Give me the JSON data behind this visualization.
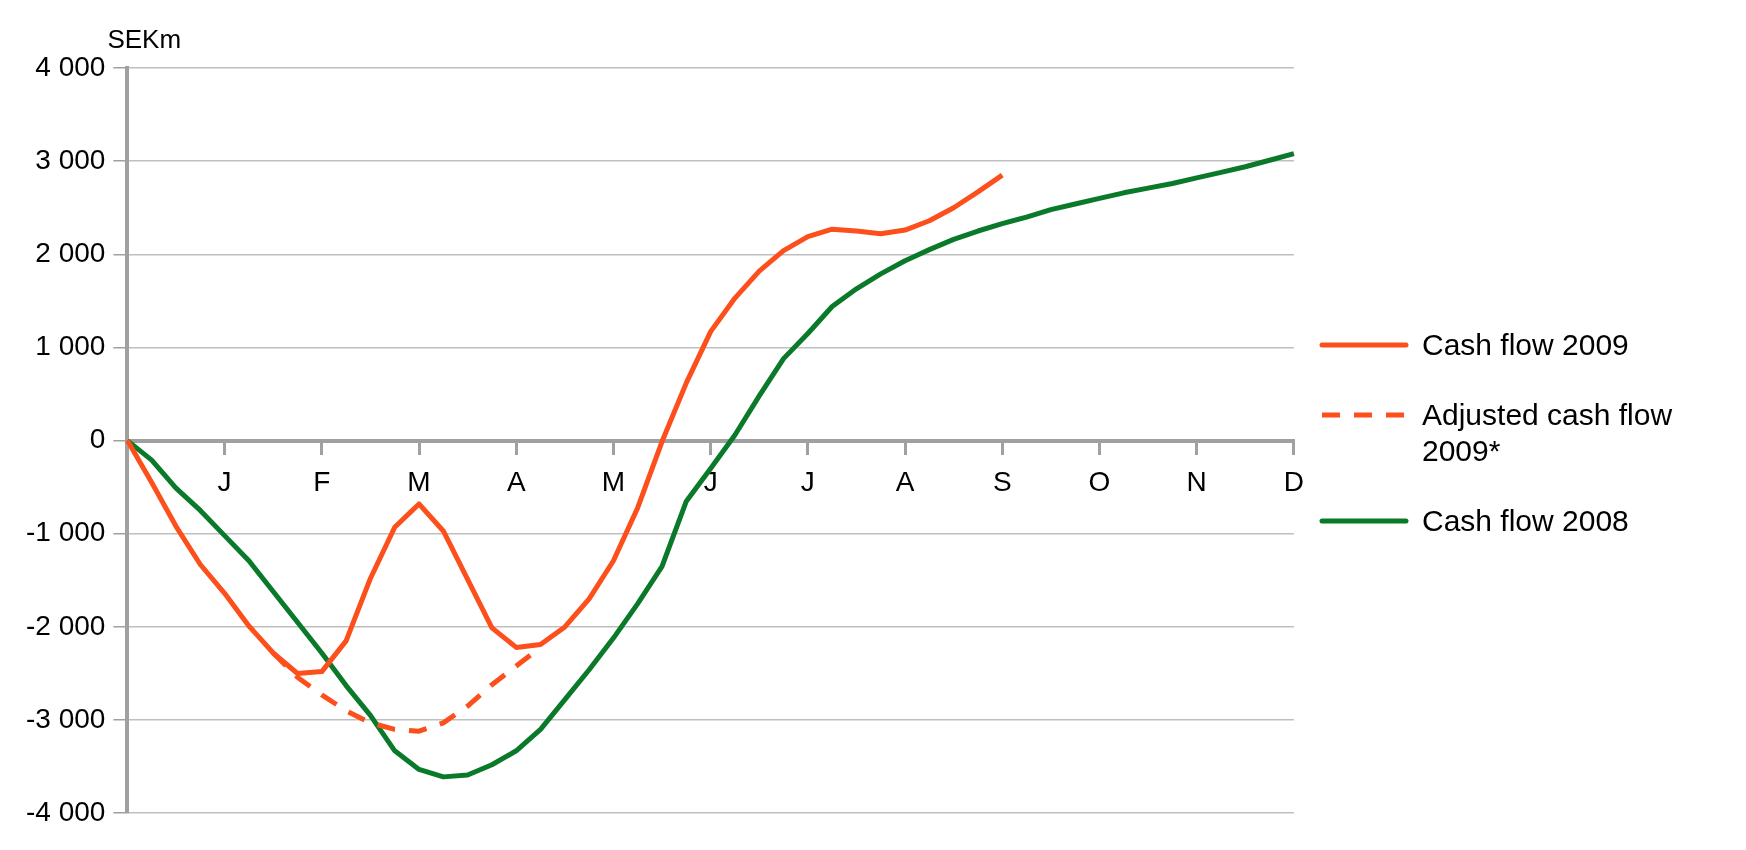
{
  "chart_data": {
    "type": "line",
    "ylabel": "SEKm",
    "categories": [
      null,
      null,
      null,
      null,
      "J",
      null,
      null,
      null,
      "F",
      null,
      null,
      null,
      "M",
      null,
      null,
      null,
      "A",
      null,
      null,
      null,
      "M",
      null,
      null,
      null,
      "J",
      null,
      null,
      null,
      "J",
      null,
      null,
      null,
      "A",
      null,
      null,
      null,
      "S",
      null,
      null,
      null,
      "O",
      null,
      null,
      null,
      "N",
      null,
      null,
      null,
      "D"
    ],
    "ylim": [
      -4000,
      4000
    ],
    "yticks": [
      {
        "value": -4000,
        "label": "-4 000"
      },
      {
        "value": -3000,
        "label": "-3 000"
      },
      {
        "value": -2000,
        "label": "-2 000"
      },
      {
        "value": -1000,
        "label": "-1 000"
      },
      0,
      {
        "value": 1000,
        "label": "1 000"
      },
      {
        "value": 2000,
        "label": "2 000"
      },
      {
        "value": 3000,
        "label": "3 000"
      },
      {
        "value": 4000,
        "label": "4 000"
      }
    ],
    "grid": "y",
    "legend": "right",
    "marker": "none",
    "series": [
      {
        "name": "Cash flow 2009",
        "color": "#fc4f1c",
        "line_style": "solid",
        "values": [
          0,
          -450,
          -920,
          -1330,
          -1640,
          -1990,
          -2280,
          -2500,
          -2480,
          -2150,
          -1480,
          -930,
          -680,
          -970,
          -1490,
          -2010,
          -2220,
          -2190,
          -2000,
          -1700,
          -1290,
          -720,
          -10,
          620,
          1170,
          1530,
          1820,
          2040,
          2190,
          2270,
          2250,
          2220,
          2260,
          2360,
          2500,
          2670,
          2850,
          null,
          null,
          null,
          null,
          null,
          null,
          null,
          null,
          null,
          null,
          null,
          null
        ]
      },
      {
        "name": "Adjusted cash flow 2009*",
        "color": "#fc4f1c",
        "line_style": "dashed",
        "values": [
          null,
          null,
          null,
          null,
          null,
          null,
          -2280,
          -2540,
          -2730,
          -2900,
          -3030,
          -3100,
          -3120,
          -3030,
          -2850,
          -2620,
          -2420,
          -2220,
          null,
          null,
          null,
          null,
          null,
          null,
          null,
          null,
          null,
          null,
          null,
          null,
          null,
          null,
          null,
          null,
          null,
          null,
          null,
          null,
          null,
          null,
          null,
          null,
          null,
          null,
          null,
          null,
          null,
          null,
          null
        ]
      },
      {
        "name": "Cash flow 2008",
        "color": "#0a7a2a",
        "line_style": "solid",
        "values": [
          0,
          -210,
          -510,
          -750,
          -1020,
          -1290,
          -1620,
          -1950,
          -2280,
          -2630,
          -2950,
          -3330,
          -3530,
          -3610,
          -3590,
          -3480,
          -3330,
          -3100,
          -2780,
          -2460,
          -2120,
          -1750,
          -1350,
          -650,
          -300,
          60,
          480,
          880,
          1150,
          1440,
          1630,
          1790,
          1930,
          2050,
          2160,
          2250,
          2330,
          2400,
          2480,
          2540,
          2600,
          2660,
          2710,
          2760,
          2820,
          2880,
          2940,
          3010,
          3080
        ]
      }
    ]
  }
}
